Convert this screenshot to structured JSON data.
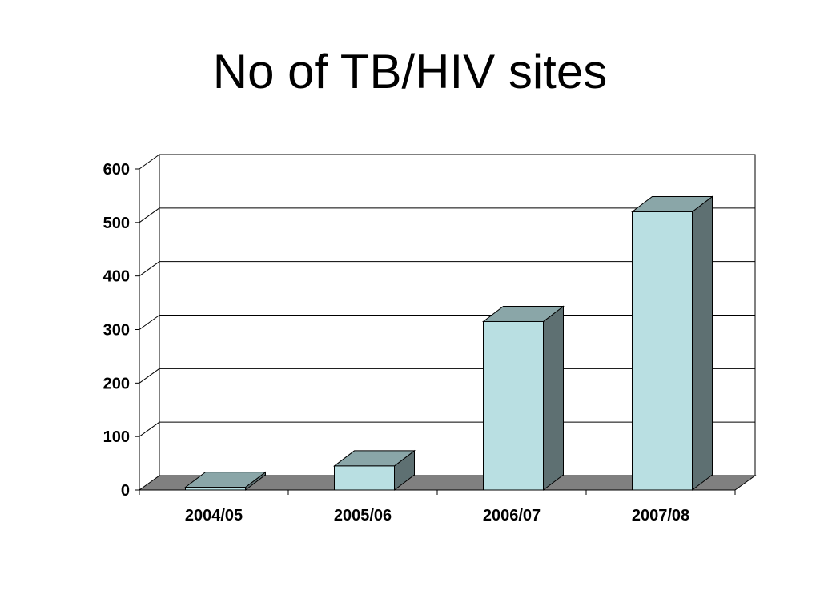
{
  "slide": {
    "title": "No of TB/HIV sites"
  },
  "chart_data": {
    "type": "bar",
    "style": "3d-column",
    "title": "No of TB/HIV sites",
    "categories": [
      "2004/05",
      "2005/06",
      "2006/07",
      "2007/08"
    ],
    "series": [
      {
        "values": [
          5,
          45,
          315,
          520
        ]
      }
    ],
    "xlabel": "",
    "ylabel": "",
    "ylim": [
      0,
      600
    ],
    "yticks": [
      0,
      100,
      200,
      300,
      400,
      500,
      600
    ],
    "grid": true,
    "legend": "none",
    "colors": {
      "bar_front": "#b9dfe2",
      "bar_top": "#8aa6a8",
      "bar_side": "#5e7072",
      "floor": "#808080",
      "gridline": "#000000"
    }
  }
}
